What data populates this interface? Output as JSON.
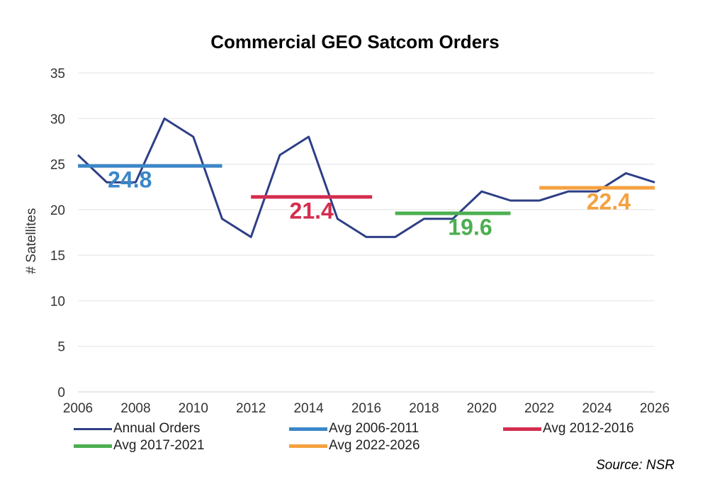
{
  "chart_data": {
    "type": "line",
    "title": "Commercial GEO Satcom Orders",
    "ylabel": "# Satellites",
    "xlabel": "",
    "xlim": [
      2006,
      2026
    ],
    "ylim": [
      0,
      35
    ],
    "xticks": [
      2006,
      2008,
      2010,
      2012,
      2014,
      2016,
      2018,
      2020,
      2022,
      2024,
      2026
    ],
    "yticks": [
      0,
      5,
      10,
      15,
      20,
      25,
      30,
      35
    ],
    "grid": "horizontal",
    "legend_position": "bottom",
    "series": [
      {
        "name": "Annual Orders",
        "color": "#2e3f86",
        "x": [
          2006,
          2007,
          2008,
          2009,
          2010,
          2011,
          2012,
          2013,
          2014,
          2015,
          2016,
          2017,
          2018,
          2019,
          2020,
          2021,
          2022,
          2023,
          2024,
          2025,
          2026
        ],
        "y": [
          26,
          23,
          23,
          30,
          28,
          19,
          17,
          26,
          28,
          19,
          17,
          17,
          19,
          19,
          22,
          21,
          21,
          22,
          22,
          24,
          23
        ]
      },
      {
        "name": "Avg 2006-2011",
        "color": "#3a87c8",
        "x": [
          2006,
          2011
        ],
        "y": [
          24.8,
          24.8
        ]
      },
      {
        "name": "Avg 2012-2016",
        "color": "#d42e4f",
        "x": [
          2012,
          2016.2
        ],
        "y": [
          21.4,
          21.4
        ]
      },
      {
        "name": "Avg 2017-2021",
        "color": "#4caf50",
        "x": [
          2017,
          2021
        ],
        "y": [
          19.6,
          19.6
        ]
      },
      {
        "name": "Avg 2022-2026",
        "color": "#f5a13f",
        "x": [
          2022,
          2026
        ],
        "y": [
          22.4,
          22.4
        ]
      }
    ],
    "annotations": [
      {
        "text": "24.8",
        "x": 2007.8,
        "y": 23.2,
        "color": "#3a87c8"
      },
      {
        "text": "21.4",
        "x": 2014.1,
        "y": 19.8,
        "color": "#d42e4f"
      },
      {
        "text": "19.6",
        "x": 2019.6,
        "y": 18.0,
        "color": "#4caf50"
      },
      {
        "text": "22.4",
        "x": 2024.4,
        "y": 20.8,
        "color": "#f5a13f"
      }
    ]
  },
  "source": "Source: NSR"
}
